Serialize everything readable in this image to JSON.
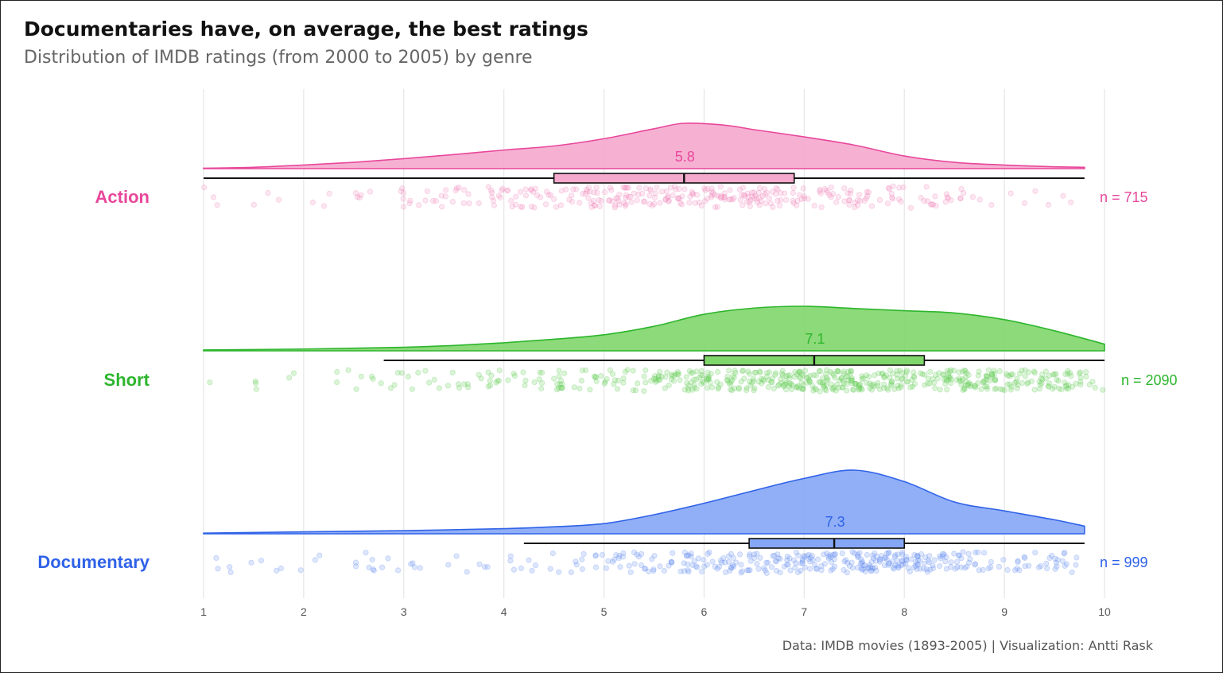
{
  "title": "Documentaries have, on average, the best ratings",
  "subtitle": "Distribution of IMDB ratings (from 2000 to 2005) by genre",
  "caption": "Data: IMDB movies (1893-2005) | Visualization: Antti Rask",
  "chart_data": {
    "type": "raincloud",
    "x_ticks": [
      "1",
      "2",
      "3",
      "4",
      "5",
      "6",
      "7",
      "8",
      "9",
      "10"
    ],
    "xlim": [
      1,
      10
    ],
    "grid": true,
    "series": [
      {
        "name": "Action",
        "color": "#e8479b",
        "fill": "#f5a9cd",
        "count_label": "n = 715",
        "median_label": "5.8",
        "box": {
          "whisker_low": 1.0,
          "q1": 4.5,
          "median": 5.8,
          "q3": 6.9,
          "whisker_high": 9.8
        },
        "density_range": [
          1.0,
          9.8
        ],
        "density_x": [
          1.0,
          1.5,
          2.0,
          2.5,
          3.0,
          3.5,
          4.0,
          4.5,
          5.0,
          5.5,
          5.8,
          6.2,
          6.5,
          7.0,
          7.5,
          8.0,
          8.5,
          9.0,
          9.5,
          9.8
        ],
        "density_y": [
          0.01,
          0.03,
          0.08,
          0.14,
          0.22,
          0.31,
          0.41,
          0.5,
          0.66,
          0.88,
          1.0,
          0.96,
          0.86,
          0.7,
          0.52,
          0.28,
          0.14,
          0.08,
          0.04,
          0.03
        ],
        "points_count": 715,
        "points_shown": 330
      },
      {
        "name": "Short",
        "color": "#2db52d",
        "fill": "#7fd66a",
        "count_label": "n = 2090",
        "median_label": "7.1",
        "box": {
          "whisker_low": 2.8,
          "q1": 6.0,
          "median": 7.1,
          "q3": 8.2,
          "whisker_high": 10.0
        },
        "density_range": [
          1.0,
          10.0
        ],
        "density_x": [
          1.0,
          2.0,
          3.0,
          3.5,
          4.0,
          4.5,
          5.0,
          5.5,
          6.0,
          6.5,
          7.0,
          7.5,
          8.0,
          8.5,
          9.0,
          9.5,
          10.0
        ],
        "density_y": [
          0.02,
          0.04,
          0.08,
          0.12,
          0.18,
          0.26,
          0.36,
          0.55,
          0.82,
          0.96,
          1.0,
          0.95,
          0.9,
          0.85,
          0.7,
          0.45,
          0.15
        ],
        "points_count": 2090,
        "points_shown": 560
      },
      {
        "name": "Documentary",
        "color": "#2f62e8",
        "fill": "#85a6f5",
        "count_label": "n = 999",
        "median_label": "7.3",
        "box": {
          "whisker_low": 4.2,
          "q1": 6.45,
          "median": 7.3,
          "q3": 8.0,
          "whisker_high": 9.8
        },
        "density_range": [
          1.0,
          9.8
        ],
        "density_x": [
          1.0,
          2.0,
          3.0,
          4.0,
          4.5,
          5.0,
          5.5,
          6.0,
          6.5,
          7.0,
          7.5,
          8.0,
          8.5,
          9.0,
          9.5,
          9.8
        ],
        "density_y": [
          0.01,
          0.03,
          0.05,
          0.08,
          0.11,
          0.16,
          0.3,
          0.48,
          0.68,
          0.87,
          1.0,
          0.82,
          0.5,
          0.36,
          0.22,
          0.12
        ],
        "points_count": 999,
        "points_shown": 380
      }
    ]
  }
}
